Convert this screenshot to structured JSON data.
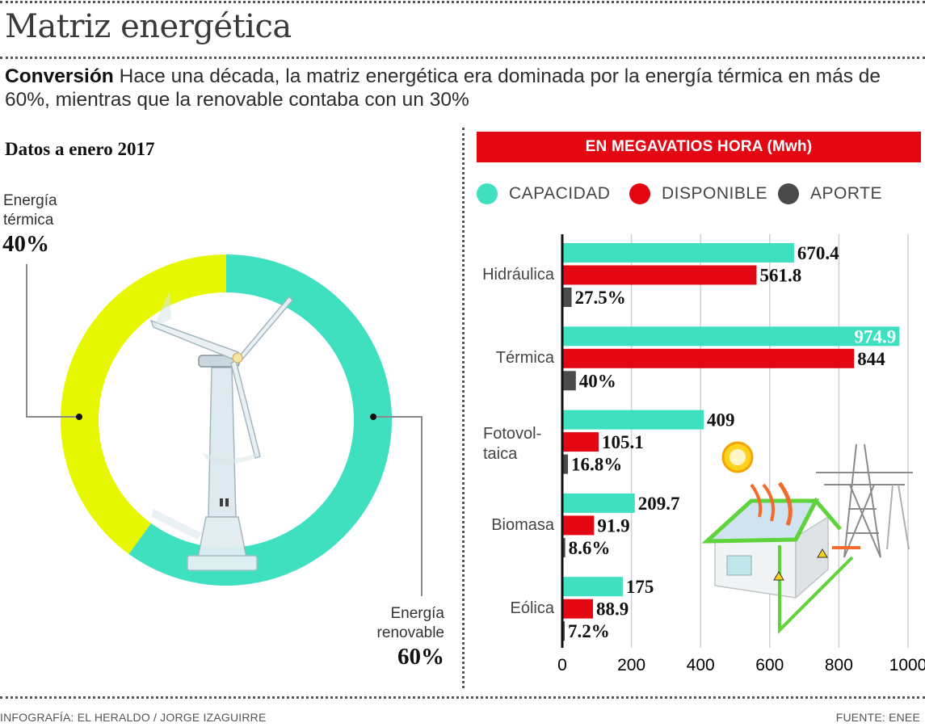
{
  "header": {
    "title": "Matriz energética",
    "subtitle_lead": "Conversión",
    "subtitle_text": "Hace una década, la matriz energética era dominada por la energía térmica en más de 60%, mientras que la renovable contaba con un 30%"
  },
  "left_panel": {
    "heading": "Datos a enero 2017",
    "thermal_label_line1": "Energía",
    "thermal_label_line2": "térmica",
    "thermal_value": "40%",
    "renewable_label_line1": "Energía",
    "renewable_label_line2": "renovable",
    "renewable_value": "60%",
    "illustration": "wind-turbine-icon"
  },
  "right_panel": {
    "banner": "EN MEGAVATIOS HORA (Mwh)",
    "legend": [
      {
        "label": "CAPACIDAD",
        "color": "#3ee0c0"
      },
      {
        "label": "DISPONIBLE",
        "color": "#e30613"
      },
      {
        "label": "APORTE",
        "color": "#4a4a4a"
      }
    ],
    "illustration": "solar-house-power-tower-icon"
  },
  "footer": {
    "credit": "INFOGRAFÍA: EL HERALDO / JORGE IZAGUIRRE",
    "source": "FUENTE: ENEE"
  },
  "chart_data": [
    {
      "type": "pie",
      "title": "Datos a enero 2017",
      "labels": [
        "Energía térmica",
        "Energía renovable"
      ],
      "values": [
        40,
        60
      ],
      "colors": [
        "#e6f700",
        "#3ee0c0"
      ],
      "donut": true
    },
    {
      "type": "bar",
      "orientation": "horizontal",
      "title": "EN MEGAVATIOS HORA (Mwh)",
      "categories": [
        "Hidráulica",
        "Térmica",
        "Fotovoltaica",
        "Biomasa",
        "Eólica"
      ],
      "category_display": [
        "Hidráulica",
        "Térmica",
        "Fotovol-\ntaica",
        "Biomasa",
        "Eólica"
      ],
      "series": [
        {
          "name": "CAPACIDAD",
          "color": "#3ee0c0",
          "values": [
            670.4,
            974.9,
            409,
            209.7,
            175
          ],
          "labels": [
            "670.4",
            "974.9",
            "409",
            "209.7",
            "175"
          ]
        },
        {
          "name": "DISPONIBLE",
          "color": "#e30613",
          "values": [
            561.8,
            844,
            105.1,
            91.9,
            88.9
          ],
          "labels": [
            "561.8",
            "844",
            "105.1",
            "91.9",
            "88.9"
          ]
        },
        {
          "name": "APORTE",
          "color": "#4a4a4a",
          "unit": "%",
          "values": [
            27.5,
            40,
            16.8,
            8.6,
            7.2
          ],
          "labels": [
            "27.5%",
            "40%",
            "16.8%",
            "8.6%",
            "7.2%"
          ]
        }
      ],
      "xlim": [
        0,
        1000
      ],
      "xticks": [
        0,
        200,
        400,
        600,
        800,
        1000
      ],
      "xtick_labels": [
        "0",
        "200",
        "400",
        "600",
        "800",
        "1000"
      ],
      "grid": true,
      "legend": "top"
    }
  ]
}
